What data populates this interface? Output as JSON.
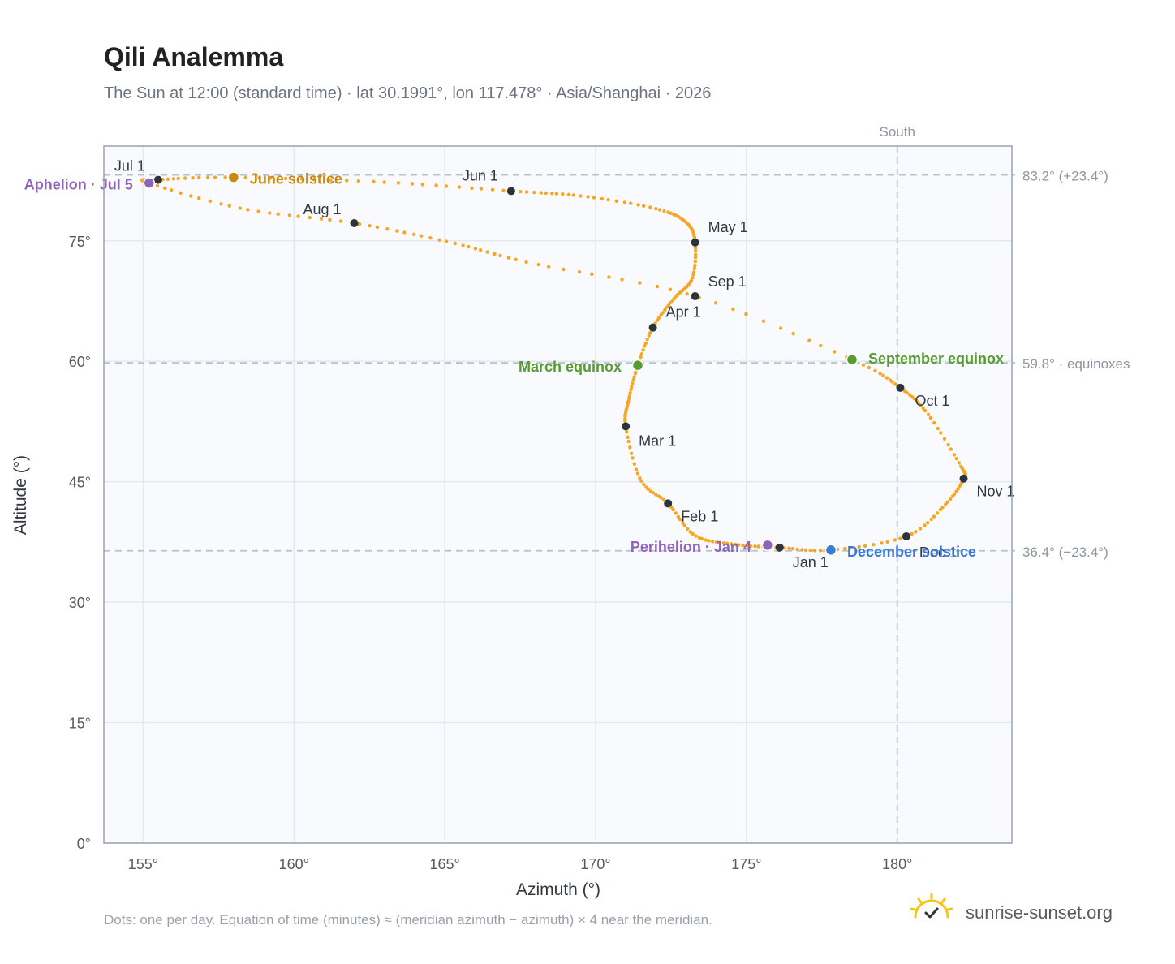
{
  "title": "Qili Analemma",
  "subtitle": "The Sun at 12:00 (standard time) · lat 30.1991°, lon 117.478° · Asia/Shanghai · 2026",
  "footnote": "Dots: one per day. Equation of time (minutes) ≈ (meridian azimuth − azimuth) × 4 near the meridian.",
  "brand": "sunrise-sunset.org",
  "colors": {
    "curve": "#f5a623",
    "month_dot": "#2d333b",
    "june_solstice": "#c98a10",
    "december_solstice": "#3a7bd5",
    "equinox": "#5a9a32",
    "aphelion_perihelion": "#9065b8",
    "plot_bg": "#f8fafd",
    "grid": "#e4e9ef",
    "frame": "#9aa3ae",
    "reference_line": "#b6c2cc"
  },
  "chart_data": {
    "type": "scatter",
    "title": "Qili Analemma",
    "xlabel": "Azimuth (°)",
    "ylabel": "Altitude (°)",
    "xlim": [
      153.7,
      183.8
    ],
    "ylim": [
      0,
      86.8
    ],
    "xticks": [
      155,
      160,
      165,
      170,
      175,
      180
    ],
    "xtick_labels": [
      "155°",
      "160°",
      "165°",
      "170°",
      "175°",
      "180°"
    ],
    "yticks": [
      0,
      15,
      30,
      45,
      60,
      75
    ],
    "ytick_labels": [
      "0°",
      "15°",
      "30°",
      "45°",
      "60°",
      "75°"
    ],
    "grid": true,
    "series": [
      {
        "role": "daily_path",
        "points_azimuth_altitude": [
          [
            176.1,
            36.8
          ],
          [
            174.6,
            37.2
          ],
          [
            173.3,
            38.3
          ],
          [
            172.4,
            42.3
          ],
          [
            171.5,
            45.2
          ],
          [
            171.0,
            51.9
          ],
          [
            171.1,
            55.2
          ],
          [
            171.4,
            59.5
          ],
          [
            171.9,
            64.2
          ],
          [
            172.6,
            67.8
          ],
          [
            173.2,
            70.3
          ],
          [
            173.3,
            74.8
          ],
          [
            173.0,
            77.3
          ],
          [
            172.0,
            79.0
          ],
          [
            169.5,
            80.6
          ],
          [
            167.2,
            81.2
          ],
          [
            163.0,
            82.3
          ],
          [
            158.0,
            82.9
          ],
          [
            155.5,
            82.6
          ],
          [
            155.2,
            82.2
          ],
          [
            158.3,
            79.0
          ],
          [
            162.0,
            77.2
          ],
          [
            165.2,
            74.8
          ],
          [
            167.9,
            72.2
          ],
          [
            173.3,
            68.1
          ],
          [
            178.5,
            60.2
          ],
          [
            180.1,
            56.7
          ],
          [
            181.0,
            53.5
          ],
          [
            182.1,
            47.0
          ],
          [
            182.2,
            45.4
          ],
          [
            181.6,
            42.2
          ],
          [
            180.3,
            38.2
          ],
          [
            177.8,
            36.5
          ],
          [
            176.1,
            36.8
          ]
        ]
      },
      {
        "role": "month_markers",
        "points": [
          {
            "label": "Jan 1",
            "azimuth": 176.1,
            "altitude": 36.8
          },
          {
            "label": "Feb 1",
            "azimuth": 172.4,
            "altitude": 42.3
          },
          {
            "label": "Mar 1",
            "azimuth": 171.0,
            "altitude": 51.9
          },
          {
            "label": "Apr 1",
            "azimuth": 171.9,
            "altitude": 64.2
          },
          {
            "label": "May 1",
            "azimuth": 173.3,
            "altitude": 74.8
          },
          {
            "label": "Jun 1",
            "azimuth": 167.2,
            "altitude": 81.2
          },
          {
            "label": "Jul 1",
            "azimuth": 155.5,
            "altitude": 82.6
          },
          {
            "label": "Aug 1",
            "azimuth": 162.0,
            "altitude": 77.2
          },
          {
            "label": "Sep 1",
            "azimuth": 173.3,
            "altitude": 68.1
          },
          {
            "label": "Oct 1",
            "azimuth": 180.1,
            "altitude": 56.7
          },
          {
            "label": "Nov 1",
            "azimuth": 182.2,
            "altitude": 45.4
          },
          {
            "label": "Dec 1",
            "azimuth": 180.3,
            "altitude": 38.2
          }
        ]
      },
      {
        "role": "events",
        "points": [
          {
            "label": "June solstice",
            "azimuth": 158.0,
            "altitude": 82.9,
            "color_key": "june_solstice"
          },
          {
            "label": "December solstice",
            "azimuth": 177.8,
            "altitude": 36.5,
            "color_key": "december_solstice"
          },
          {
            "label": "March equinox",
            "azimuth": 171.4,
            "altitude": 59.5,
            "color_key": "equinox"
          },
          {
            "label": "September equinox",
            "azimuth": 178.5,
            "altitude": 60.2,
            "color_key": "equinox"
          },
          {
            "label": "Aphelion · Jul 5",
            "azimuth": 155.2,
            "altitude": 82.2,
            "color_key": "aphelion_perihelion"
          },
          {
            "label": "Perihelion · Jan 4",
            "azimuth": 175.7,
            "altitude": 37.1,
            "color_key": "aphelion_perihelion"
          }
        ]
      }
    ],
    "reference_lines": {
      "horizontal": [
        {
          "altitude": 83.2,
          "label": "83.2° (+23.4°)"
        },
        {
          "altitude": 59.8,
          "label": "59.8° · equinoxes"
        },
        {
          "altitude": 36.4,
          "label": "36.4° (−23.4°)"
        }
      ],
      "vertical": [
        {
          "azimuth": 180,
          "label": "South"
        }
      ]
    }
  }
}
